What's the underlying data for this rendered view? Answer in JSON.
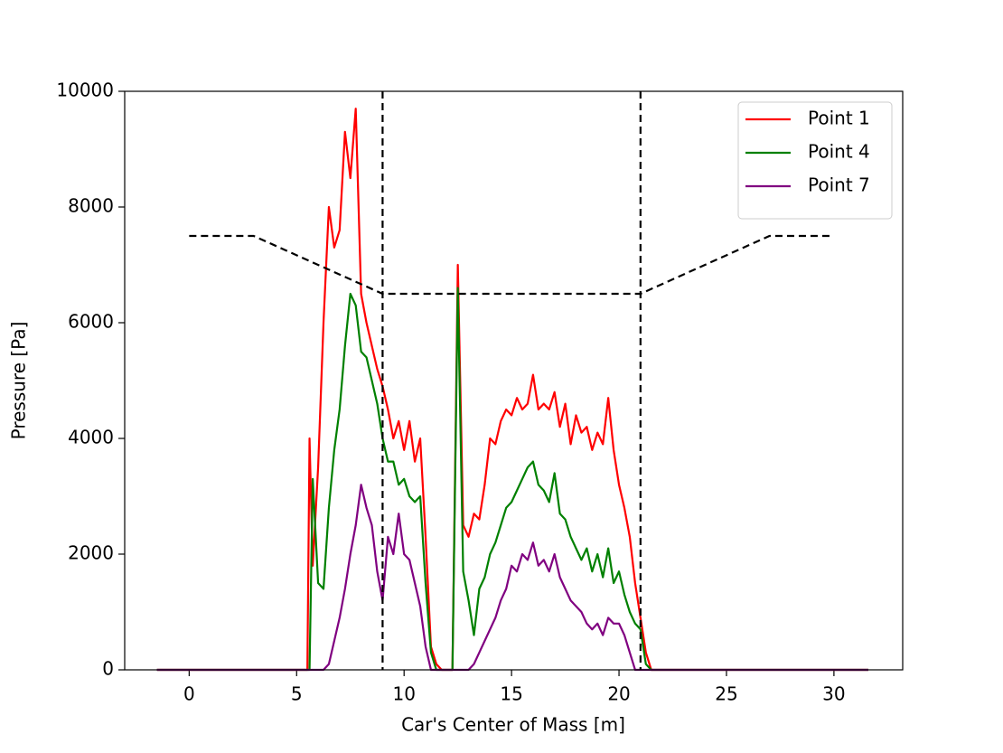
{
  "chart_data": {
    "type": "line",
    "x_label": "Car's Center of Mass [m]",
    "y_label": "Pressure [Pa]",
    "x": [
      -1.5,
      5.5,
      5.6,
      5.75,
      6.0,
      6.25,
      6.5,
      6.75,
      7.0,
      7.25,
      7.5,
      7.75,
      8.0,
      8.25,
      8.5,
      8.75,
      9.0,
      9.25,
      9.5,
      9.75,
      10.0,
      10.25,
      10.5,
      10.75,
      11.0,
      11.25,
      11.5,
      11.75,
      12.0,
      12.25,
      12.5,
      12.75,
      13.0,
      13.25,
      13.5,
      13.75,
      14.0,
      14.25,
      14.5,
      14.75,
      15.0,
      15.25,
      15.5,
      15.75,
      16.0,
      16.25,
      16.5,
      16.75,
      17.0,
      17.25,
      17.5,
      17.75,
      18.0,
      18.25,
      18.5,
      18.75,
      19.0,
      19.25,
      19.5,
      19.75,
      20.0,
      20.25,
      20.5,
      20.75,
      21.0,
      21.25,
      21.5,
      21.75,
      22.0,
      31.6
    ],
    "series": [
      {
        "name": "Point 1",
        "color": "#ff0000",
        "values": [
          0,
          0,
          4000,
          1800,
          3500,
          6000,
          8000,
          7300,
          7600,
          9300,
          8500,
          9700,
          6500,
          6000,
          5600,
          5200,
          4900,
          4500,
          4000,
          4300,
          3800,
          4300,
          3600,
          4000,
          2300,
          400,
          100,
          0,
          0,
          0,
          7000,
          2500,
          2300,
          2700,
          2600,
          3200,
          4000,
          3900,
          4300,
          4500,
          4400,
          4700,
          4500,
          4600,
          5100,
          4500,
          4600,
          4500,
          4800,
          4200,
          4600,
          3900,
          4400,
          4100,
          4200,
          3800,
          4100,
          3900,
          4700,
          3800,
          3200,
          2800,
          2300,
          1500,
          900,
          300,
          0,
          0,
          0,
          0
        ]
      },
      {
        "name": "Point 4",
        "color": "#008000",
        "values": [
          0,
          0,
          0,
          3300,
          1500,
          1400,
          2800,
          3800,
          4500,
          5600,
          6500,
          6300,
          5500,
          5400,
          5000,
          4600,
          4000,
          3600,
          3600,
          3200,
          3300,
          3000,
          2900,
          3000,
          1500,
          300,
          0,
          0,
          0,
          0,
          6600,
          1700,
          1200,
          600,
          1400,
          1600,
          2000,
          2200,
          2500,
          2800,
          2900,
          3100,
          3300,
          3500,
          3600,
          3200,
          3100,
          2900,
          3400,
          2700,
          2600,
          2300,
          2100,
          1900,
          2100,
          1700,
          2000,
          1600,
          2100,
          1500,
          1700,
          1300,
          1000,
          800,
          700,
          100,
          0,
          0,
          0,
          0
        ]
      },
      {
        "name": "Point 7",
        "color": "#800080",
        "values": [
          0,
          0,
          0,
          0,
          0,
          0,
          100,
          500,
          900,
          1400,
          2000,
          2500,
          3200,
          2800,
          2500,
          1700,
          1200,
          2300,
          2000,
          2700,
          2000,
          1900,
          1500,
          1100,
          400,
          0,
          0,
          0,
          0,
          0,
          0,
          0,
          0,
          100,
          300,
          500,
          700,
          900,
          1200,
          1400,
          1800,
          1700,
          2000,
          1900,
          2200,
          1800,
          1900,
          1700,
          2000,
          1600,
          1400,
          1200,
          1100,
          1000,
          800,
          700,
          800,
          600,
          900,
          800,
          800,
          600,
          300,
          0,
          0,
          0,
          0,
          0,
          0,
          0
        ]
      }
    ],
    "reference_line": {
      "x": [
        0,
        3,
        9,
        21,
        27,
        30
      ],
      "y": [
        7500,
        7500,
        6500,
        6500,
        7500,
        7500
      ],
      "color": "#000000",
      "dashed": true
    },
    "vlines": [
      9,
      21
    ],
    "vline_color": "#000000",
    "xlim": [
      -3.0,
      33.2
    ],
    "ylim": [
      0,
      10000
    ],
    "xticks": [
      0,
      5,
      10,
      15,
      20,
      25,
      30
    ],
    "yticks": [
      0,
      2000,
      4000,
      6000,
      8000,
      10000
    ],
    "grid": false,
    "legend_loc": "upper right"
  }
}
